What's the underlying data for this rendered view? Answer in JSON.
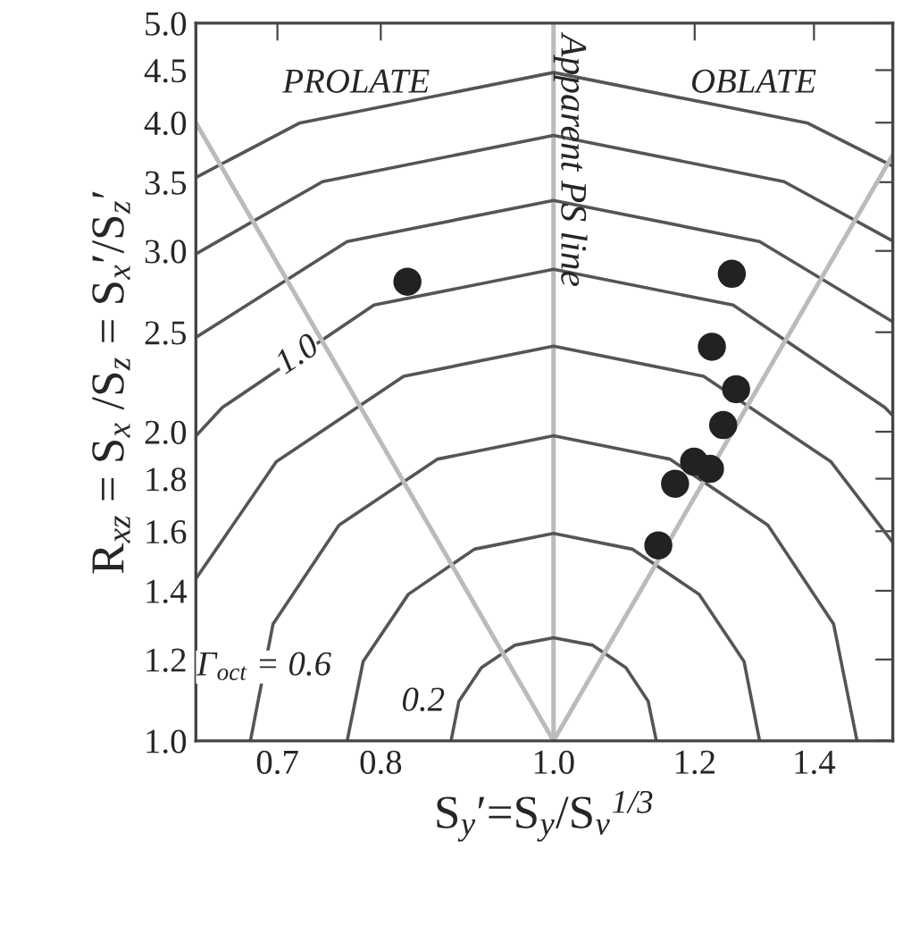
{
  "chart_data": {
    "type": "scatter",
    "xlabel": "S$_{y}$′=S$_{y}$/S$_{v}$$^{1/3}$",
    "ylabel": "R$_{xz}$ = S$_{x}$ /S$_{z}$ = S$_{x}$′/S$_{z}$′",
    "log": "xy",
    "grid": false,
    "legend": false,
    "xlim": [
      0.63,
      1.55
    ],
    "ylim": [
      1.0,
      5.0
    ],
    "xticks": [
      {
        "value": 0.7,
        "label": "0.7"
      },
      {
        "value": 0.8,
        "label": "0.8"
      },
      {
        "value": 1.0,
        "label": "1.0"
      },
      {
        "value": 1.2,
        "label": "1.2"
      },
      {
        "value": 1.4,
        "label": "1.4"
      }
    ],
    "yticks": [
      {
        "value": 1.0,
        "label": "1.0"
      },
      {
        "value": 1.2,
        "label": "1.2"
      },
      {
        "value": 1.4,
        "label": "1.4"
      },
      {
        "value": 1.6,
        "label": "1.6"
      },
      {
        "value": 1.8,
        "label": "1.8"
      },
      {
        "value": 2.0,
        "label": "2.0"
      },
      {
        "value": 2.5,
        "label": "2.5"
      },
      {
        "value": 3.0,
        "label": "3.0"
      },
      {
        "value": 3.5,
        "label": "3.5"
      },
      {
        "value": 4.0,
        "label": "4.0"
      },
      {
        "value": 4.5,
        "label": "4.5"
      },
      {
        "value": 5.0,
        "label": "5.0"
      }
    ],
    "series": [
      {
        "marker": "circle",
        "color": "#222222",
        "x": [
          0.828,
          1.259,
          1.227,
          1.266,
          1.245,
          1.199,
          1.224,
          1.17,
          1.145
        ],
        "values": [
          2.8,
          2.85,
          2.42,
          2.2,
          2.03,
          1.87,
          1.84,
          1.78,
          1.55
        ]
      },
      {
        "type": "line",
        "color": "#555555",
        "x": [
          0.876,
          0.885,
          0.911,
          0.951,
          1,
          1.052,
          1.098,
          1.13,
          1.142
        ],
        "values": [
          1,
          1.093,
          1.178,
          1.239,
          1.26,
          1.239,
          1.178,
          1.093,
          1
        ]
      },
      {
        "type": "line",
        "color": "#555555",
        "x": [
          0.766,
          0.782,
          0.829,
          0.903,
          1,
          1.107,
          1.207,
          1.279,
          1.305
        ],
        "values": [
          1,
          1.195,
          1.389,
          1.537,
          1.592,
          1.537,
          1.389,
          1.195,
          1
        ]
      },
      {
        "type": "line",
        "color": "#555555",
        "x": [
          0.676,
          0.696,
          0.758,
          0.861,
          1,
          1.162,
          1.319,
          1.436,
          1.48
        ],
        "values": [
          1,
          1.299,
          1.622,
          1.881,
          1.982,
          1.881,
          1.622,
          1.299,
          1
        ]
      },
      {
        "type": "line",
        "color": "#555555",
        "x": [
          0.63,
          0.699,
          0.824,
          1,
          1.214,
          1.431,
          1.55
        ],
        "values": [
          1.438,
          1.87,
          2.265,
          2.423,
          2.265,
          1.87,
          1.56
        ]
      },
      {
        "type": "line",
        "color": "#555555",
        "x": [
          0.63,
          0.652,
          0.793,
          1,
          1.261,
          1.534,
          1.55
        ],
        "values": [
          1.981,
          2.112,
          2.657,
          2.879,
          2.657,
          2.112,
          2.074
        ]
      },
      {
        "type": "line",
        "color": "#555555",
        "x": [
          0.63,
          0.766,
          1,
          1.305,
          1.55
        ],
        "values": [
          2.471,
          3.064,
          3.36,
          3.064,
          2.559
        ]
      },
      {
        "type": "line",
        "color": "#555555",
        "x": [
          0.63,
          0.742,
          1,
          1.347,
          1.55
        ],
        "values": [
          2.98,
          3.504,
          3.887,
          3.504,
          3.068
        ]
      },
      {
        "type": "line",
        "color": "#555555",
        "x": [
          0.63,
          0.72,
          1,
          1.389,
          1.55
        ],
        "values": [
          3.537,
          3.995,
          4.476,
          3.995,
          3.628
        ]
      },
      {
        "type": "line",
        "color": "#bbbbbb",
        "x": [
          1,
          0.63
        ],
        "values": [
          1,
          4.0
        ]
      },
      {
        "type": "line",
        "color": "#bbbbbb",
        "x": [
          1,
          1.55
        ],
        "values": [
          1,
          3.72
        ]
      }
    ],
    "ref_lines": [
      {
        "axis": "x",
        "value": 1.0,
        "label": "Apparent PS line",
        "color": "#bbbbbb"
      }
    ],
    "annotations": [
      "PROLATE",
      "OBLATE",
      {
        "text": "1.0",
        "x": 0.719,
        "y": 2.37
      },
      {
        "text": "Γ$_{oct}$ = 0.6",
        "x": 0.688,
        "y": 1.18
      },
      {
        "text": "0.2",
        "x": 0.845,
        "y": 1.09
      }
    ]
  }
}
